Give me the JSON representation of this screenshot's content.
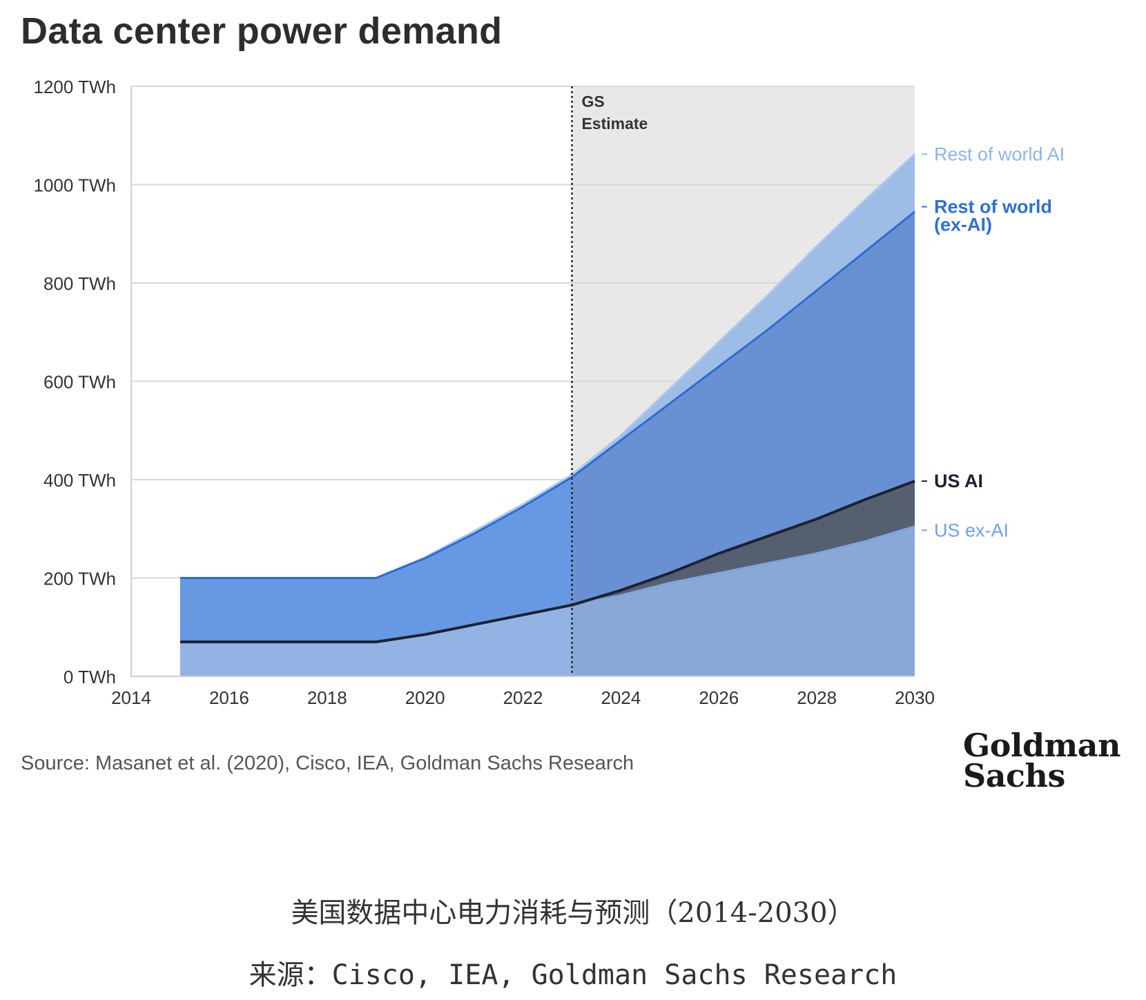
{
  "header": {
    "title": "Data center power demand"
  },
  "footer": {
    "source": "Source: Masanet et al. (2020), Cisco, IEA, Goldman Sachs Research",
    "logo_line1": "Goldman",
    "logo_line2": "Sachs"
  },
  "captions": {
    "title": "美国数据中心电力消耗与预测（2014-2030）",
    "source_prefix": "来源：",
    "source_text": "Cisco, IEA, Goldman Sachs Research"
  },
  "colors": {
    "us_ex_ai_hist": "#93b3e4",
    "us_ex_ai_est": "#88a8d6",
    "row_ex_ai_hist": "#6699e2",
    "row_ex_ai_est": "#6990d2",
    "row_ex_ai_line": "#2e6bd6",
    "row_ai": "#9ebde6",
    "us_ai": "#555f70",
    "us_ai_line": "#1d2230",
    "estimate_bg": "#e8e8e8",
    "label_row_ai": "#8ab5ec",
    "label_row_ex_ai": "#2f6fd8",
    "label_us_ai": "#1d2230",
    "label_us_ex_ai": "#6fa2ea"
  },
  "chart_data": {
    "type": "area",
    "stacked": true,
    "x": [
      2015,
      2016,
      2017,
      2018,
      2019,
      2020,
      2021,
      2022,
      2023,
      2024,
      2025,
      2026,
      2027,
      2028,
      2029,
      2030
    ],
    "x_ticks": [
      "2014",
      "2016",
      "2018",
      "2020",
      "2022",
      "2024",
      "2026",
      "2028",
      "2030"
    ],
    "y_ticks": [
      "0 TWh",
      "200 TWh",
      "400 TWh",
      "600 TWh",
      "800 TWh",
      "1000 TWh",
      "1200 TWh"
    ],
    "xlim": [
      2014,
      2030
    ],
    "ylim": [
      0,
      1200
    ],
    "grid": true,
    "estimate_start": 2023,
    "estimate_label_1": "GS",
    "estimate_label_2": "Estimate",
    "series": [
      {
        "name": "US ex-AI",
        "values": [
          70,
          70,
          70,
          70,
          70,
          85,
          105,
          125,
          145,
          165,
          190,
          210,
          230,
          250,
          275,
          305
        ]
      },
      {
        "name": "US AI",
        "values": [
          70,
          70,
          70,
          70,
          70,
          85,
          105,
          125,
          145,
          175,
          210,
          250,
          285,
          320,
          360,
          397
        ]
      },
      {
        "name": "Rest of world (ex-AI)",
        "values": [
          200,
          200,
          200,
          200,
          200,
          240,
          290,
          345,
          405,
          480,
          555,
          630,
          705,
          785,
          865,
          945
        ]
      },
      {
        "name": "Rest of world AI",
        "values": [
          200,
          200,
          200,
          200,
          200,
          242,
          295,
          350,
          410,
          490,
          585,
          680,
          775,
          875,
          970,
          1062
        ]
      }
    ],
    "legend": {
      "row_ai": "Rest of world AI",
      "row_ex_ai_1": "Rest of world",
      "row_ex_ai_2": "(ex-AI)",
      "us_ai": "US AI",
      "us_ex_ai": "US ex-AI"
    }
  }
}
